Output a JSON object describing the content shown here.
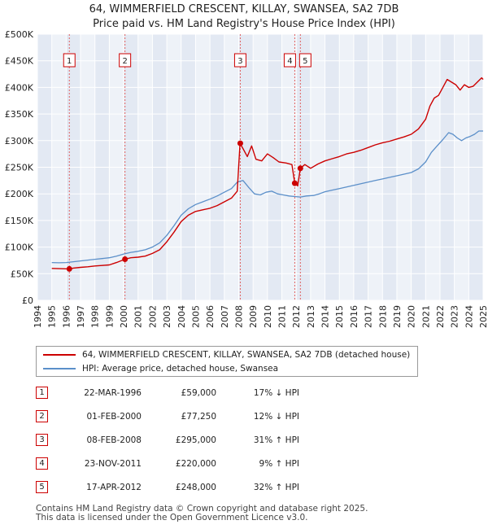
{
  "title_line1": "64, WIMMERFIELD CRESCENT, KILLAY, SWANSEA, SA2 7DB",
  "title_line2": "Price paid vs. HM Land Registry's House Price Index (HPI)",
  "chart_data": {
    "type": "line",
    "title": "64, WIMMERFIELD CRESCENT, KILLAY, SWANSEA, SA2 7DB",
    "subtitle": "Price paid vs. HM Land Registry's House Price Index (HPI)",
    "xlabel": "",
    "ylabel": "",
    "xlim": [
      1994,
      2025
    ],
    "ylim": [
      0,
      500000
    ],
    "x_ticks": [
      "1994",
      "1995",
      "1996",
      "1997",
      "1998",
      "1999",
      "2000",
      "2001",
      "2002",
      "2003",
      "2004",
      "2005",
      "2006",
      "2007",
      "2008",
      "2009",
      "2010",
      "2011",
      "2012",
      "2013",
      "2014",
      "2015",
      "2016",
      "2017",
      "2018",
      "2019",
      "2020",
      "2021",
      "2022",
      "2023",
      "2024",
      "2025"
    ],
    "y_ticks": [
      {
        "value": 0,
        "label": "£0"
      },
      {
        "value": 50000,
        "label": "£50K"
      },
      {
        "value": 100000,
        "label": "£100K"
      },
      {
        "value": 150000,
        "label": "£150K"
      },
      {
        "value": 200000,
        "label": "£200K"
      },
      {
        "value": 250000,
        "label": "£250K"
      },
      {
        "value": 300000,
        "label": "£300K"
      },
      {
        "value": 350000,
        "label": "£350K"
      },
      {
        "value": 400000,
        "label": "£400K"
      },
      {
        "value": 450000,
        "label": "£450K"
      },
      {
        "value": 500000,
        "label": "£500K"
      }
    ],
    "grid": true,
    "legend_position": "below",
    "series": [
      {
        "name": "64, WIMMERFIELD CRESCENT, KILLAY, SWANSEA, SA2 7DB (detached house)",
        "color": "#cc0000",
        "points": [
          [
            1995.0,
            60000
          ],
          [
            1995.5,
            59500
          ],
          [
            1996.22,
            59000
          ],
          [
            1996.5,
            60500
          ],
          [
            1997.0,
            62000
          ],
          [
            1997.5,
            63000
          ],
          [
            1998.0,
            64500
          ],
          [
            1998.5,
            65500
          ],
          [
            1999.0,
            66500
          ],
          [
            1999.5,
            71000
          ],
          [
            2000.09,
            77250
          ],
          [
            2000.5,
            80000
          ],
          [
            2001.0,
            81000
          ],
          [
            2001.5,
            83000
          ],
          [
            2002.0,
            88000
          ],
          [
            2002.5,
            95000
          ],
          [
            2003.0,
            110000
          ],
          [
            2003.5,
            128000
          ],
          [
            2004.0,
            148000
          ],
          [
            2004.5,
            160000
          ],
          [
            2005.0,
            167000
          ],
          [
            2005.5,
            170000
          ],
          [
            2006.0,
            173000
          ],
          [
            2006.5,
            178000
          ],
          [
            2007.0,
            185000
          ],
          [
            2007.5,
            192000
          ],
          [
            2007.9,
            205000
          ],
          [
            2008.09,
            295000
          ],
          [
            2008.3,
            285000
          ],
          [
            2008.6,
            270000
          ],
          [
            2008.9,
            290000
          ],
          [
            2009.2,
            265000
          ],
          [
            2009.6,
            262000
          ],
          [
            2010.0,
            275000
          ],
          [
            2010.4,
            268000
          ],
          [
            2010.8,
            260000
          ],
          [
            2011.3,
            258000
          ],
          [
            2011.7,
            255000
          ],
          [
            2011.9,
            220000
          ],
          [
            2012.1,
            215000
          ],
          [
            2012.29,
            248000
          ],
          [
            2012.6,
            255000
          ],
          [
            2013.0,
            248000
          ],
          [
            2013.5,
            256000
          ],
          [
            2014.0,
            262000
          ],
          [
            2014.5,
            266000
          ],
          [
            2015.0,
            270000
          ],
          [
            2015.5,
            275000
          ],
          [
            2016.0,
            278000
          ],
          [
            2016.5,
            282000
          ],
          [
            2017.0,
            287000
          ],
          [
            2017.5,
            292000
          ],
          [
            2018.0,
            296000
          ],
          [
            2018.5,
            299000
          ],
          [
            2019.0,
            303000
          ],
          [
            2019.5,
            307000
          ],
          [
            2020.0,
            312000
          ],
          [
            2020.5,
            322000
          ],
          [
            2021.0,
            340000
          ],
          [
            2021.3,
            365000
          ],
          [
            2021.6,
            380000
          ],
          [
            2021.9,
            385000
          ],
          [
            2022.2,
            400000
          ],
          [
            2022.5,
            415000
          ],
          [
            2022.8,
            410000
          ],
          [
            2023.1,
            405000
          ],
          [
            2023.4,
            395000
          ],
          [
            2023.7,
            405000
          ],
          [
            2024.0,
            400000
          ],
          [
            2024.3,
            402000
          ],
          [
            2024.6,
            410000
          ],
          [
            2024.9,
            418000
          ],
          [
            2025.0,
            415000
          ]
        ]
      },
      {
        "name": "HPI: Average price, detached house, Swansea",
        "color": "#5b8fc9",
        "points": [
          [
            1995.0,
            71000
          ],
          [
            1995.5,
            70500
          ],
          [
            1996.0,
            71000
          ],
          [
            1996.5,
            72500
          ],
          [
            1997.0,
            74000
          ],
          [
            1997.5,
            75500
          ],
          [
            1998.0,
            77000
          ],
          [
            1998.5,
            78500
          ],
          [
            1999.0,
            80000
          ],
          [
            1999.5,
            83000
          ],
          [
            2000.0,
            87000
          ],
          [
            2000.5,
            90000
          ],
          [
            2001.0,
            92000
          ],
          [
            2001.5,
            95000
          ],
          [
            2002.0,
            100000
          ],
          [
            2002.5,
            108000
          ],
          [
            2003.0,
            122000
          ],
          [
            2003.5,
            140000
          ],
          [
            2004.0,
            160000
          ],
          [
            2004.5,
            172000
          ],
          [
            2005.0,
            180000
          ],
          [
            2005.5,
            185000
          ],
          [
            2006.0,
            190000
          ],
          [
            2006.5,
            196000
          ],
          [
            2007.0,
            203000
          ],
          [
            2007.5,
            210000
          ],
          [
            2007.9,
            222000
          ],
          [
            2008.3,
            225000
          ],
          [
            2008.7,
            212000
          ],
          [
            2009.1,
            200000
          ],
          [
            2009.5,
            198000
          ],
          [
            2009.9,
            203000
          ],
          [
            2010.3,
            205000
          ],
          [
            2010.7,
            200000
          ],
          [
            2011.1,
            198000
          ],
          [
            2011.5,
            196000
          ],
          [
            2011.9,
            195000
          ],
          [
            2012.3,
            194000
          ],
          [
            2012.7,
            196000
          ],
          [
            2013.2,
            197000
          ],
          [
            2013.6,
            200000
          ],
          [
            2014.0,
            204000
          ],
          [
            2014.5,
            207000
          ],
          [
            2015.0,
            210000
          ],
          [
            2015.5,
            213000
          ],
          [
            2016.0,
            216000
          ],
          [
            2016.5,
            219000
          ],
          [
            2017.0,
            222000
          ],
          [
            2017.5,
            225000
          ],
          [
            2018.0,
            228000
          ],
          [
            2018.5,
            231000
          ],
          [
            2019.0,
            234000
          ],
          [
            2019.5,
            237000
          ],
          [
            2020.0,
            240000
          ],
          [
            2020.5,
            247000
          ],
          [
            2021.0,
            260000
          ],
          [
            2021.4,
            278000
          ],
          [
            2021.8,
            290000
          ],
          [
            2022.2,
            302000
          ],
          [
            2022.6,
            315000
          ],
          [
            2022.9,
            312000
          ],
          [
            2023.2,
            305000
          ],
          [
            2023.5,
            300000
          ],
          [
            2023.8,
            305000
          ],
          [
            2024.1,
            308000
          ],
          [
            2024.4,
            312000
          ],
          [
            2024.7,
            318000
          ],
          [
            2025.0,
            318000
          ]
        ]
      }
    ],
    "sales": [
      {
        "label": "1",
        "date": "22-MAR-1996",
        "x": 1996.22,
        "price": 59000,
        "price_text": "£59,000",
        "hpi": "17% ↓ HPI"
      },
      {
        "label": "2",
        "date": "01-FEB-2000",
        "x": 2000.09,
        "price": 77250,
        "price_text": "£77,250",
        "hpi": "12% ↓ HPI"
      },
      {
        "label": "3",
        "date": "08-FEB-2008",
        "x": 2008.11,
        "price": 295000,
        "price_text": "£295,000",
        "hpi": "31% ↑ HPI"
      },
      {
        "label": "4",
        "date": "23-NOV-2011",
        "x": 2011.9,
        "price": 220000,
        "price_text": "£220,000",
        "hpi": "9% ↑ HPI"
      },
      {
        "label": "5",
        "date": "17-APR-2012",
        "x": 2012.29,
        "price": 248000,
        "price_text": "£248,000",
        "hpi": "32% ↑ HPI"
      }
    ]
  },
  "legend": {
    "item1": "64, WIMMERFIELD CRESCENT, KILLAY, SWANSEA, SA2 7DB (detached house)",
    "item2": "HPI: Average price, detached house, Swansea"
  },
  "footer_line1": "Contains HM Land Registry data © Crown copyright and database right 2025.",
  "footer_line2": "This data is licensed under the Open Government Licence v3.0."
}
